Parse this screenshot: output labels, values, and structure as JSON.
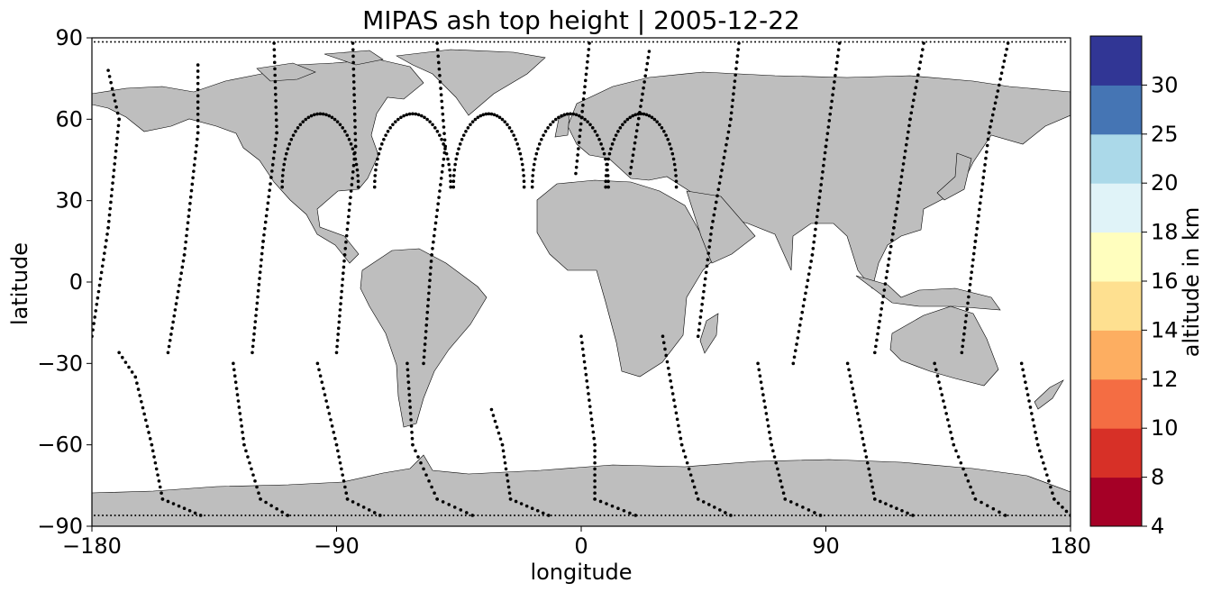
{
  "title": "MIPAS ash top height | 2005-12-22",
  "xlabel": "longitude",
  "ylabel": "latitude",
  "x_ticks": [
    "−180",
    "−90",
    "0",
    "90",
    "180"
  ],
  "y_ticks": [
    "90",
    "60",
    "30",
    "0",
    "−30",
    "−60",
    "−90"
  ],
  "colorbar": {
    "label": "altitude in km",
    "ticks": [
      "4",
      "8",
      "10",
      "12",
      "14",
      "16",
      "18",
      "20",
      "25",
      "30"
    ],
    "bounds": [
      4,
      8,
      10,
      12,
      14,
      16,
      18,
      20,
      25,
      30
    ],
    "colors": [
      "#a50026",
      "#d73027",
      "#f46d43",
      "#fdae61",
      "#fee090",
      "#fffebe",
      "#e0f3f8",
      "#abd9e9",
      "#4575b4",
      "#313695"
    ]
  },
  "map": {
    "land_color": "#bebebe",
    "coast_color": "#000000",
    "ocean_color": "#ffffff",
    "track_color": "#000000",
    "lon_range": [
      -180,
      180
    ],
    "lat_range": [
      -90,
      90
    ]
  },
  "chart_data": {
    "type": "scatter",
    "title": "MIPAS ash top height | 2005-12-22",
    "xlabel": "longitude",
    "ylabel": "latitude",
    "xlim": [
      -180,
      180
    ],
    "ylim": [
      -90,
      90
    ],
    "orbit_tracks": [
      {
        "points": [
          [
            -180,
            -20
          ],
          [
            -174,
            20
          ],
          [
            -170,
            60
          ],
          [
            -174,
            78
          ],
          [
            -170,
            -26
          ],
          [
            -164,
            -35
          ],
          [
            -158,
            -60
          ],
          [
            -154,
            -80
          ],
          [
            -140,
            -86
          ]
        ]
      },
      {
        "points": [
          [
            -152,
            -26
          ],
          [
            -146,
            10
          ],
          [
            -141,
            55
          ],
          [
            -141,
            80
          ],
          [
            -128,
            -30
          ],
          [
            -124,
            -60
          ],
          [
            -118,
            -80
          ],
          [
            -108,
            -86
          ]
        ]
      },
      {
        "points": [
          [
            -121,
            -26
          ],
          [
            -117,
            15
          ],
          [
            -112,
            55
          ],
          [
            -113,
            88
          ],
          [
            -97,
            -30
          ],
          [
            -90,
            -60
          ],
          [
            -86,
            -80
          ],
          [
            -74,
            -86
          ]
        ]
      },
      {
        "points": [
          [
            -90,
            -26
          ],
          [
            -87,
            10
          ],
          [
            -83,
            50
          ],
          [
            -84,
            88
          ],
          [
            -64,
            -30
          ],
          [
            -62,
            -60
          ],
          [
            -53,
            -80
          ],
          [
            -40,
            -86
          ]
        ]
      },
      {
        "points": [
          [
            -58,
            -30
          ],
          [
            -55,
            10
          ],
          [
            -50,
            50
          ],
          [
            -53,
            88
          ],
          [
            -33,
            -47
          ],
          [
            -29,
            -60
          ],
          [
            -26,
            -80
          ],
          [
            -12,
            -86
          ]
        ]
      },
      {
        "points": [
          [
            -2,
            40
          ],
          [
            3,
            88
          ],
          [
            0,
            -20
          ],
          [
            5,
            -60
          ],
          [
            5,
            -80
          ],
          [
            20,
            -86
          ]
        ]
      },
      {
        "points": [
          [
            18,
            40
          ],
          [
            25,
            85
          ],
          [
            30,
            -20
          ],
          [
            37,
            -60
          ],
          [
            43,
            -80
          ],
          [
            55,
            -86
          ]
        ]
      },
      {
        "points": [
          [
            43,
            -20
          ],
          [
            48,
            20
          ],
          [
            55,
            60
          ],
          [
            58,
            88
          ],
          [
            65,
            -30
          ],
          [
            70,
            -60
          ],
          [
            75,
            -80
          ],
          [
            88,
            -86
          ]
        ]
      },
      {
        "points": [
          [
            78,
            -30
          ],
          [
            85,
            10
          ],
          [
            90,
            50
          ],
          [
            95,
            88
          ],
          [
            98,
            -30
          ],
          [
            104,
            -60
          ],
          [
            108,
            -80
          ],
          [
            122,
            -86
          ]
        ]
      },
      {
        "points": [
          [
            108,
            -26
          ],
          [
            115,
            20
          ],
          [
            121,
            60
          ],
          [
            126,
            88
          ],
          [
            130,
            -30
          ],
          [
            137,
            -60
          ],
          [
            145,
            -80
          ],
          [
            156,
            -86
          ]
        ]
      },
      {
        "points": [
          [
            140,
            -26
          ],
          [
            145,
            15
          ],
          [
            150,
            55
          ],
          [
            157,
            88
          ],
          [
            162,
            -30
          ],
          [
            168,
            -60
          ],
          [
            174,
            -80
          ],
          [
            180,
            -86
          ]
        ]
      }
    ],
    "arc_features": [
      {
        "center": [
          -96,
          35
        ],
        "radius_lon": 14,
        "top_lat": 62
      },
      {
        "center": [
          -62,
          35
        ],
        "radius_lon": 14,
        "top_lat": 62
      },
      {
        "center": [
          -34,
          35
        ],
        "radius_lon": 13,
        "top_lat": 62
      },
      {
        "center": [
          -4,
          35
        ],
        "radius_lon": 14,
        "top_lat": 62
      },
      {
        "center": [
          22,
          35
        ],
        "radius_lon": 13,
        "top_lat": 62
      }
    ],
    "polar_rows": [
      88.5,
      -86
    ]
  }
}
